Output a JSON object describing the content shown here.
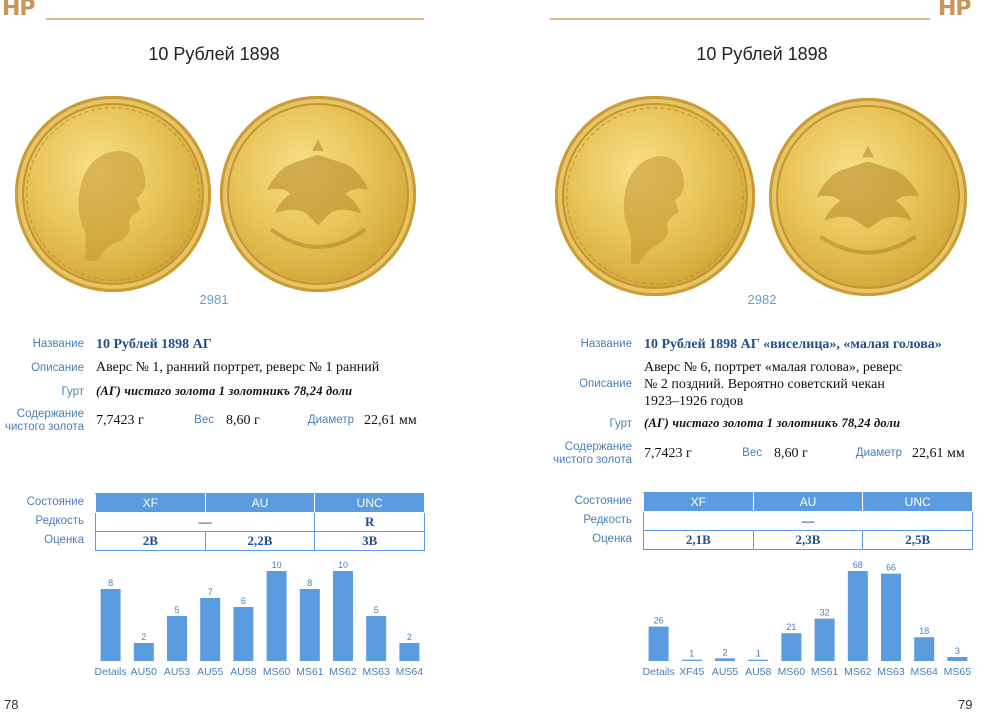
{
  "brand": {
    "logo_text": "НР",
    "accent": "#c8955a",
    "blue": "#5b9be0"
  },
  "pages": [
    {
      "title": "10 Рублей 1898",
      "catalog_number": "2981",
      "page_number": "78",
      "labels": {
        "name": "Название",
        "description": "Описание",
        "edge": "Гурт",
        "content": [
          "Содержание",
          "чистого золота"
        ],
        "weight": "Вес",
        "diameter": "Диаметр",
        "condition": "Состояние",
        "rarity": "Редкость",
        "estimate": "Оценка"
      },
      "name": "10 Рублей 1898 АГ",
      "description": [
        "Аверс № 1, ранний портрет, реверс № 1 ранний"
      ],
      "edge_text": "(АГ) чистаго золота 1 золотникъ 78,24 доли",
      "gold_content": "7,7423 г",
      "weight": "8,60 г",
      "diameter": "22,61 мм",
      "grades": {
        "headers": [
          "XF",
          "AU",
          "UNC"
        ],
        "rarity": [
          "—",
          "",
          "R"
        ],
        "estimate": [
          "2В",
          "2,2В",
          "3В"
        ],
        "rarity_merged_first_two": true
      },
      "chart_data": {
        "type": "bar",
        "categories": [
          "Details",
          "AU50",
          "AU53",
          "AU55",
          "AU58",
          "MS60",
          "MS61",
          "MS62",
          "MS63",
          "MS64"
        ],
        "values": [
          8,
          2,
          5,
          7,
          6,
          10,
          8,
          10,
          5,
          2
        ],
        "ylim": [
          0,
          10
        ],
        "color": "#5b9be0",
        "grid": false
      }
    },
    {
      "title": "10 Рублей 1898",
      "catalog_number": "2982",
      "page_number": "79",
      "labels": {
        "name": "Название",
        "description": "Описание",
        "edge": "Гурт",
        "content": [
          "Содержание",
          "чистого золота"
        ],
        "weight": "Вес",
        "diameter": "Диаметр",
        "condition": "Состояние",
        "rarity": "Редкость",
        "estimate": "Оценка"
      },
      "name": "10 Рублей 1898 АГ «виселица», «малая голова»",
      "description": [
        "Аверс № 6, портрет «малая голова», реверс",
        "№ 2 поздний. Вероятно советский чекан",
        "1923–1926 годов"
      ],
      "edge_text": "(АГ) чистаго золота 1 золотникъ 78,24 доли",
      "gold_content": "7,7423 г",
      "weight": "8,60 г",
      "diameter": "22,61 мм",
      "grades": {
        "headers": [
          "XF",
          "AU",
          "UNC"
        ],
        "rarity": [
          "—"
        ],
        "estimate": [
          "2,1В",
          "2,3В",
          "2,5В"
        ],
        "rarity_merged_all": true
      },
      "chart_data": {
        "type": "bar",
        "categories": [
          "Details",
          "XF45",
          "AU55",
          "AU58",
          "MS60",
          "MS61",
          "MS62",
          "MS63",
          "MS64",
          "MS65"
        ],
        "values": [
          26,
          1,
          2,
          1,
          21,
          32,
          68,
          66,
          18,
          3
        ],
        "ylim": [
          0,
          68
        ],
        "color": "#5b9be0",
        "grid": false
      }
    }
  ]
}
